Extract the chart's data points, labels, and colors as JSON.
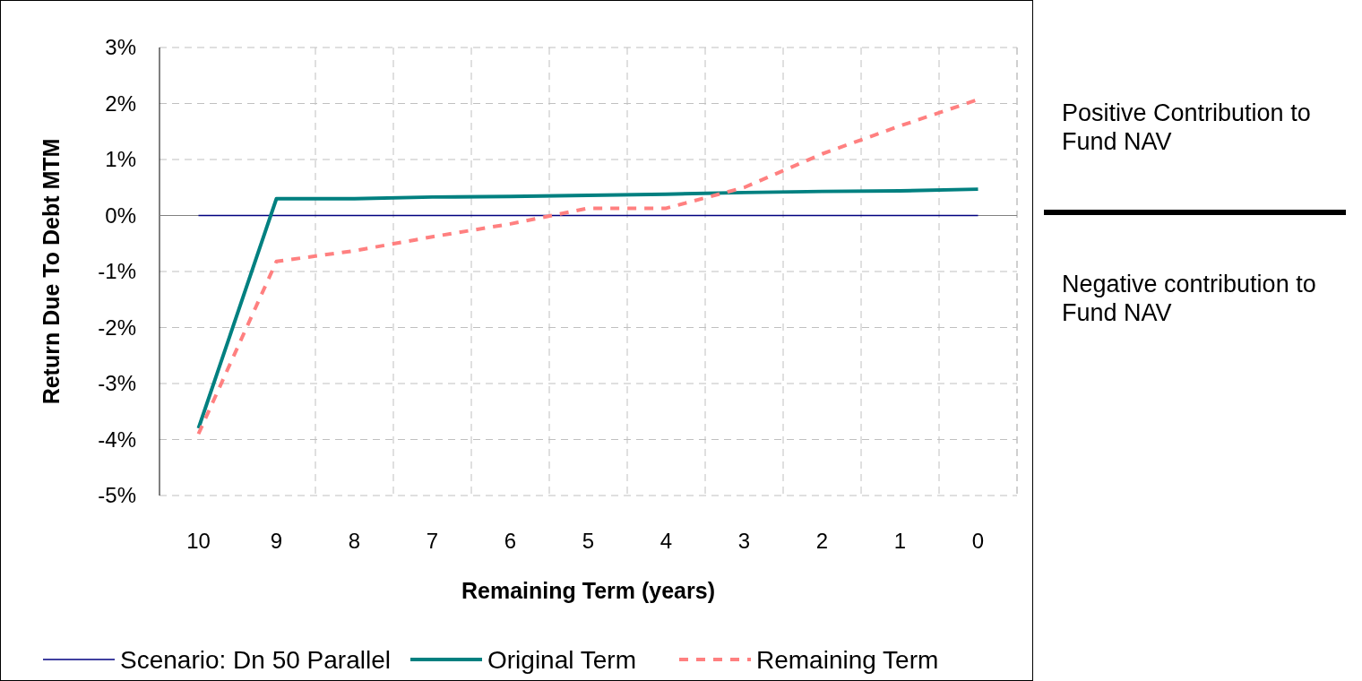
{
  "chart_data": {
    "type": "line",
    "xlabel": "Remaining Term (years)",
    "ylabel": "Return Due To Debt MTM",
    "categories": [
      "10",
      "9",
      "8",
      "7",
      "6",
      "5",
      "4",
      "3",
      "2",
      "1",
      "0"
    ],
    "series": [
      {
        "name": "Scenario: Dn 50 Parallel",
        "color": "#000080",
        "values": [
          0,
          0,
          0,
          0,
          0,
          0,
          0,
          0,
          0,
          0,
          0
        ],
        "line_style": "solid"
      },
      {
        "name": "Original Term",
        "color": "#008080",
        "values": [
          -3.8,
          0.3,
          0.3,
          0.33,
          0.34,
          0.36,
          0.38,
          0.41,
          0.43,
          0.44,
          0.47
        ],
        "line_style": "solid"
      },
      {
        "name": "Remaining Term",
        "color": "#ff8080",
        "values": [
          -3.9,
          -0.82,
          -0.63,
          -0.38,
          -0.15,
          0.13,
          0.13,
          0.5,
          1.1,
          1.6,
          2.07
        ],
        "line_style": "dashed"
      }
    ],
    "ylim": [
      -5,
      3
    ],
    "yticks": [
      {
        "value": -5,
        "label": "-5%"
      },
      {
        "value": -4,
        "label": "-4%"
      },
      {
        "value": -3,
        "label": "-3%"
      },
      {
        "value": -2,
        "label": "-2%"
      },
      {
        "value": -1,
        "label": "-1%"
      },
      {
        "value": 0,
        "label": "0%"
      },
      {
        "value": 1,
        "label": "1%"
      },
      {
        "value": 2,
        "label": "2%"
      },
      {
        "value": 3,
        "label": "3%"
      }
    ],
    "grid": true,
    "legend": "bottom",
    "marker": "none",
    "annotations": [
      "Positive Contribution to Fund NAV",
      "Negative contribution to Fund NAV"
    ]
  }
}
